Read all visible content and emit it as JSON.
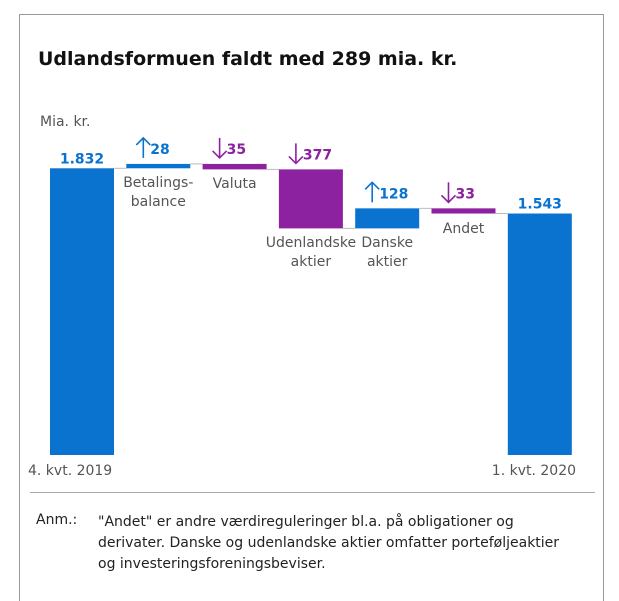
{
  "chart_data": {
    "type": "waterfall",
    "title": "Udlandsformuen faldt med 289 mia. kr.",
    "ylabel": "Mia. kr.",
    "categories": [
      "4. kvt. 2019",
      "Betalings-\nbalance",
      "Valuta",
      "Udenlandske\naktier",
      "Danske\naktier",
      "Andet",
      "1. kvt. 2020"
    ],
    "kinds": [
      "total",
      "delta",
      "delta",
      "delta",
      "delta",
      "delta",
      "total"
    ],
    "values": [
      1832,
      28,
      -35,
      -377,
      128,
      -33,
      1543
    ],
    "value_labels": [
      "1.832",
      "28",
      "35",
      "377",
      "128",
      "33",
      "1.543"
    ],
    "colors": {
      "total": "#0a73d0",
      "up": "#0a73d0",
      "down": "#8c22a0"
    },
    "ylim": [
      0,
      2000
    ],
    "note": {
      "label": "Anm.:",
      "text": "\"Andet\" er andre værdireguleringer bl.a. på obligationer og derivater. Danske og udenlandske aktier omfatter porteføljeaktier og investeringsforeningsbeviser."
    }
  }
}
